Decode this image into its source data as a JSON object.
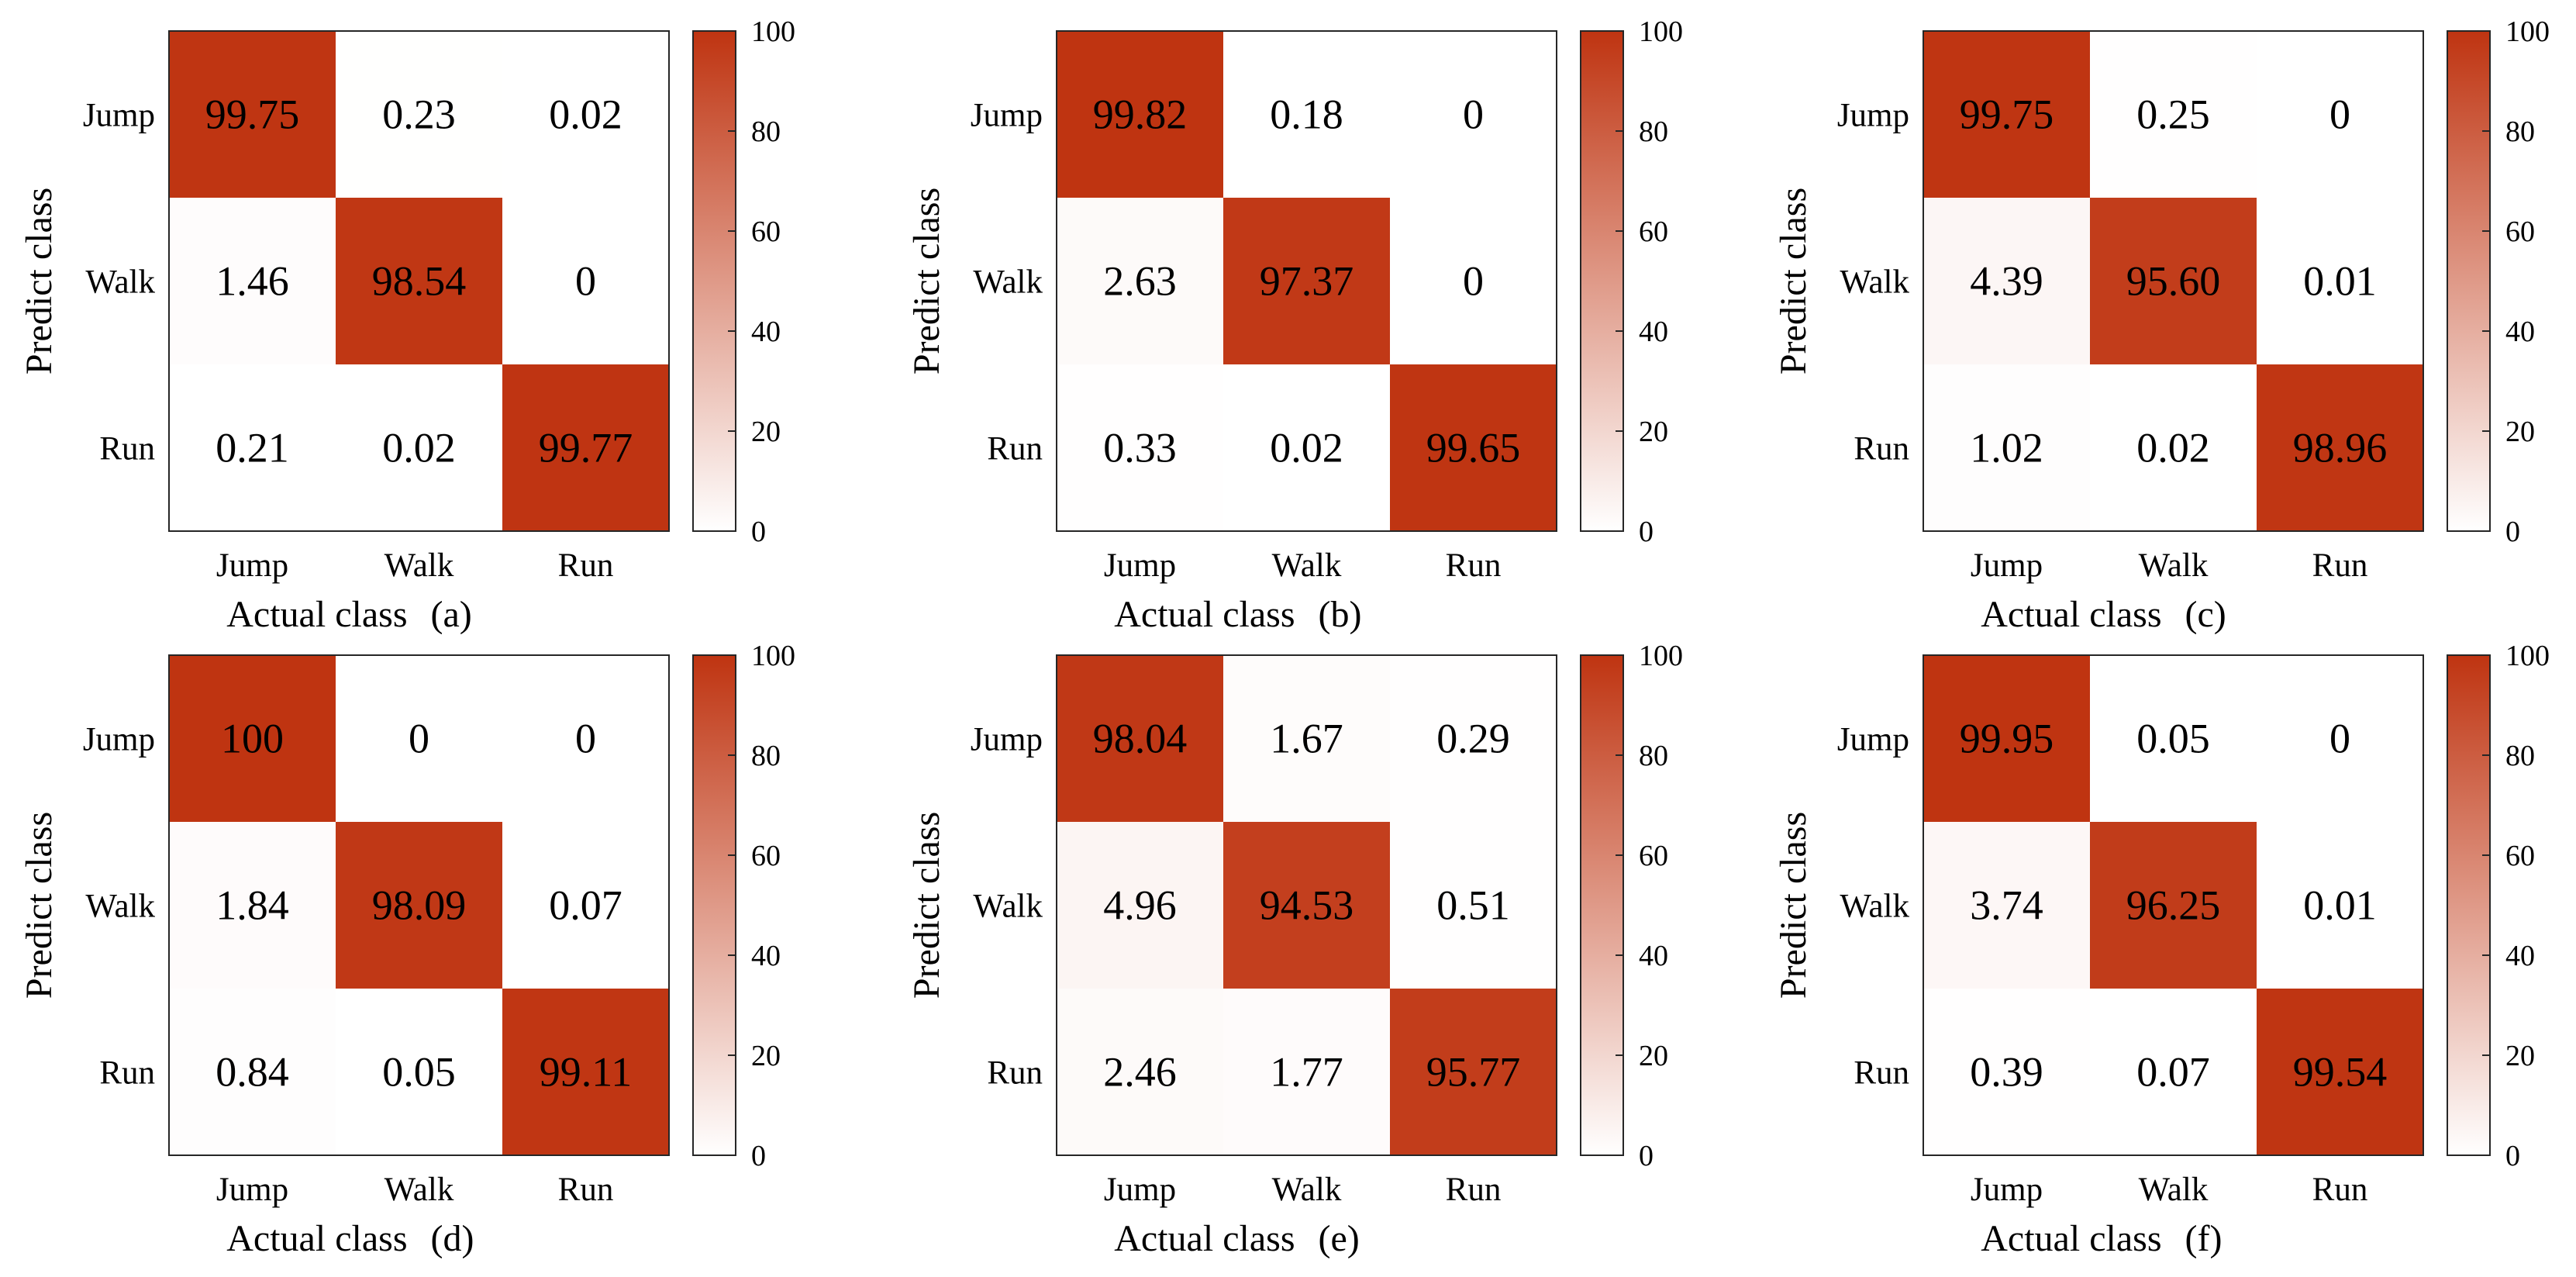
{
  "figure": {
    "colormap": {
      "low": "#ffffff",
      "high": "#bf3411"
    },
    "colorbar_ticks": [
      "0",
      "20",
      "40",
      "60",
      "80",
      "100"
    ],
    "colorbar_range": [
      0,
      100
    ]
  },
  "chart_data": [
    {
      "type": "heatmap",
      "panel": "(a)",
      "xlabel": "Actual class",
      "ylabel": "Predict class",
      "x_categories": [
        "Jump",
        "Walk",
        "Run"
      ],
      "y_categories": [
        "Jump",
        "Walk",
        "Run"
      ],
      "labels": [
        [
          "99.75",
          "0.23",
          "0.02"
        ],
        [
          "1.46",
          "98.54",
          "0"
        ],
        [
          "0.21",
          "0.02",
          "99.77"
        ]
      ],
      "values": [
        [
          99.75,
          0.23,
          0.02
        ],
        [
          1.46,
          98.54,
          0
        ],
        [
          0.21,
          0.02,
          99.77
        ]
      ],
      "zlim": [
        0,
        100
      ]
    },
    {
      "type": "heatmap",
      "panel": "(b)",
      "xlabel": "Actual class",
      "ylabel": "Predict class",
      "x_categories": [
        "Jump",
        "Walk",
        "Run"
      ],
      "y_categories": [
        "Jump",
        "Walk",
        "Run"
      ],
      "labels": [
        [
          "99.82",
          "0.18",
          "0"
        ],
        [
          "2.63",
          "97.37",
          "0"
        ],
        [
          "0.33",
          "0.02",
          "99.65"
        ]
      ],
      "values": [
        [
          99.82,
          0.18,
          0
        ],
        [
          2.63,
          97.37,
          0
        ],
        [
          0.33,
          0.02,
          99.65
        ]
      ],
      "zlim": [
        0,
        100
      ]
    },
    {
      "type": "heatmap",
      "panel": "(c)",
      "xlabel": "Actual class",
      "ylabel": "Predict class",
      "x_categories": [
        "Jump",
        "Walk",
        "Run"
      ],
      "y_categories": [
        "Jump",
        "Walk",
        "Run"
      ],
      "labels": [
        [
          "99.75",
          "0.25",
          "0"
        ],
        [
          "4.39",
          "95.60",
          "0.01"
        ],
        [
          "1.02",
          "0.02",
          "98.96"
        ]
      ],
      "values": [
        [
          99.75,
          0.25,
          0
        ],
        [
          4.39,
          95.6,
          0.01
        ],
        [
          1.02,
          0.02,
          98.96
        ]
      ],
      "zlim": [
        0,
        100
      ]
    },
    {
      "type": "heatmap",
      "panel": "(d)",
      "xlabel": "Actual class",
      "ylabel": "Predict class",
      "x_categories": [
        "Jump",
        "Walk",
        "Run"
      ],
      "y_categories": [
        "Jump",
        "Walk",
        "Run"
      ],
      "labels": [
        [
          "100",
          "0",
          "0"
        ],
        [
          "1.84",
          "98.09",
          "0.07"
        ],
        [
          "0.84",
          "0.05",
          "99.11"
        ]
      ],
      "values": [
        [
          100,
          0,
          0
        ],
        [
          1.84,
          98.09,
          0.07
        ],
        [
          0.84,
          0.05,
          99.11
        ]
      ],
      "zlim": [
        0,
        100
      ]
    },
    {
      "type": "heatmap",
      "panel": "(e)",
      "xlabel": "Actual class",
      "ylabel": "Predict class",
      "x_categories": [
        "Jump",
        "Walk",
        "Run"
      ],
      "y_categories": [
        "Jump",
        "Walk",
        "Run"
      ],
      "labels": [
        [
          "98.04",
          "1.67",
          "0.29"
        ],
        [
          "4.96",
          "94.53",
          "0.51"
        ],
        [
          "2.46",
          "1.77",
          "95.77"
        ]
      ],
      "values": [
        [
          98.04,
          1.67,
          0.29
        ],
        [
          4.96,
          94.53,
          0.51
        ],
        [
          2.46,
          1.77,
          95.77
        ]
      ],
      "zlim": [
        0,
        100
      ]
    },
    {
      "type": "heatmap",
      "panel": "(f)",
      "xlabel": "Actual class",
      "ylabel": "Predict class",
      "x_categories": [
        "Jump",
        "Walk",
        "Run"
      ],
      "y_categories": [
        "Jump",
        "Walk",
        "Run"
      ],
      "labels": [
        [
          "99.95",
          "0.05",
          "0"
        ],
        [
          "3.74",
          "96.25",
          "0.01"
        ],
        [
          "0.39",
          "0.07",
          "99.54"
        ]
      ],
      "values": [
        [
          99.95,
          0.05,
          0
        ],
        [
          3.74,
          96.25,
          0.01
        ],
        [
          0.39,
          0.07,
          99.54
        ]
      ],
      "zlim": [
        0,
        100
      ]
    }
  ]
}
